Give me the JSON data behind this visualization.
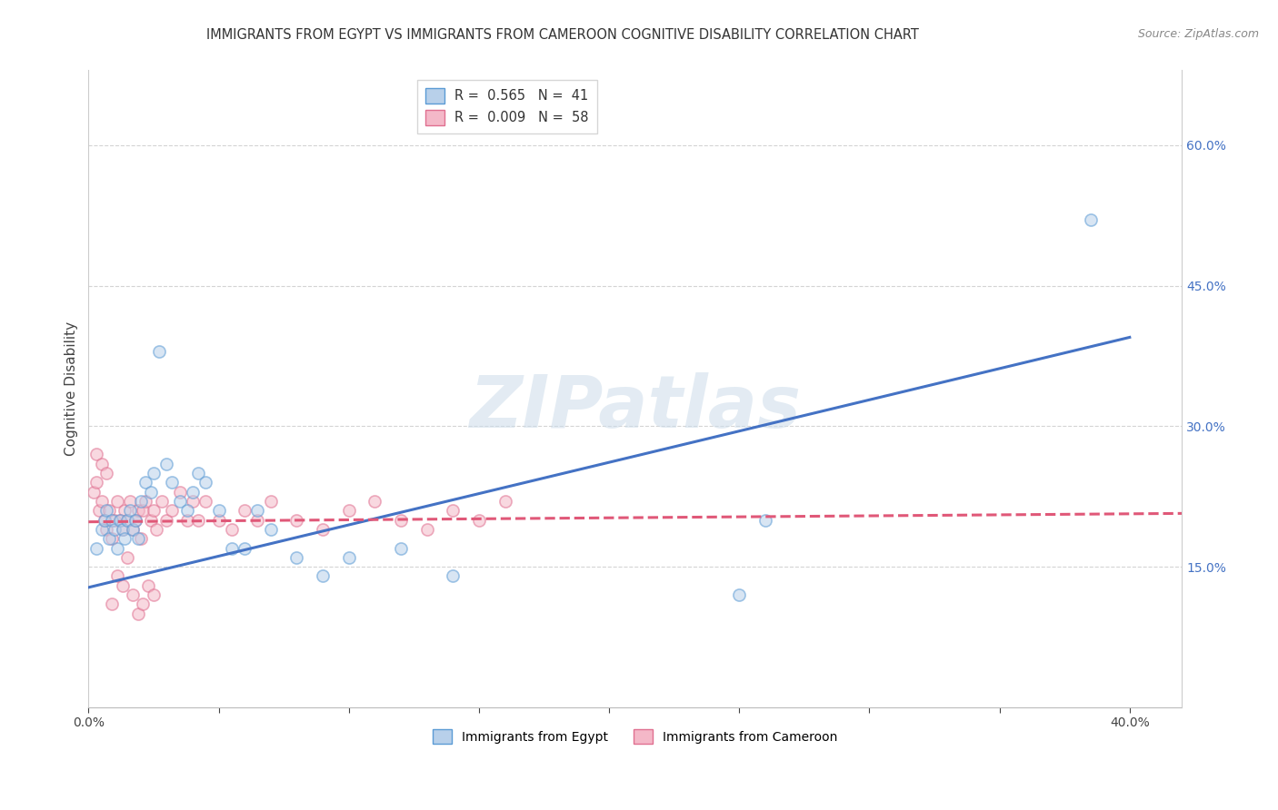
{
  "title": "IMMIGRANTS FROM EGYPT VS IMMIGRANTS FROM CAMEROON COGNITIVE DISABILITY CORRELATION CHART",
  "source": "Source: ZipAtlas.com",
  "ylabel": "Cognitive Disability",
  "xlabel_egypt": "Immigrants from Egypt",
  "xlabel_cameroon": "Immigrants from Cameroon",
  "watermark": "ZIPatlas",
  "xlim": [
    0.0,
    0.42
  ],
  "ylim": [
    0.0,
    0.68
  ],
  "xtick_positions": [
    0.0,
    0.05,
    0.1,
    0.15,
    0.2,
    0.25,
    0.3,
    0.35,
    0.4
  ],
  "xtick_labels": [
    "0.0%",
    "",
    "",
    "",
    "",
    "",
    "",
    "",
    "40.0%"
  ],
  "yticks_right": [
    0.15,
    0.3,
    0.45,
    0.6
  ],
  "ytick_labels_right": [
    "15.0%",
    "30.0%",
    "45.0%",
    "60.0%"
  ],
  "color_egypt_fill": "#b8d0ea",
  "color_egypt_edge": "#5b9bd5",
  "color_egypt_line": "#4472c4",
  "color_cameroon_fill": "#f4b8c8",
  "color_cameroon_edge": "#e07090",
  "color_cameroon_line": "#e05878",
  "grid_color": "#d0d0d0",
  "background_color": "#ffffff",
  "scatter_size": 90,
  "scatter_alpha": 0.55,
  "line_width": 2.2,
  "egypt_x": [
    0.003,
    0.005,
    0.006,
    0.007,
    0.008,
    0.009,
    0.01,
    0.011,
    0.012,
    0.013,
    0.014,
    0.015,
    0.016,
    0.017,
    0.018,
    0.019,
    0.02,
    0.022,
    0.024,
    0.025,
    0.027,
    0.03,
    0.032,
    0.035,
    0.038,
    0.04,
    0.042,
    0.045,
    0.05,
    0.055,
    0.06,
    0.065,
    0.07,
    0.08,
    0.09,
    0.1,
    0.12,
    0.14,
    0.25,
    0.385,
    0.26
  ],
  "egypt_y": [
    0.17,
    0.19,
    0.2,
    0.21,
    0.18,
    0.2,
    0.19,
    0.17,
    0.2,
    0.19,
    0.18,
    0.2,
    0.21,
    0.19,
    0.2,
    0.18,
    0.22,
    0.24,
    0.23,
    0.25,
    0.38,
    0.26,
    0.24,
    0.22,
    0.21,
    0.23,
    0.25,
    0.24,
    0.21,
    0.17,
    0.17,
    0.21,
    0.19,
    0.16,
    0.14,
    0.16,
    0.17,
    0.14,
    0.12,
    0.52,
    0.2
  ],
  "cameroon_x": [
    0.002,
    0.003,
    0.004,
    0.005,
    0.006,
    0.007,
    0.008,
    0.009,
    0.01,
    0.011,
    0.012,
    0.013,
    0.014,
    0.015,
    0.016,
    0.017,
    0.018,
    0.019,
    0.02,
    0.021,
    0.022,
    0.024,
    0.025,
    0.026,
    0.028,
    0.03,
    0.032,
    0.035,
    0.038,
    0.04,
    0.042,
    0.045,
    0.05,
    0.055,
    0.06,
    0.065,
    0.07,
    0.08,
    0.09,
    0.1,
    0.11,
    0.12,
    0.13,
    0.14,
    0.15,
    0.16,
    0.003,
    0.005,
    0.007,
    0.009,
    0.011,
    0.013,
    0.015,
    0.017,
    0.019,
    0.021,
    0.023,
    0.025
  ],
  "cameroon_y": [
    0.23,
    0.24,
    0.21,
    0.22,
    0.2,
    0.19,
    0.21,
    0.18,
    0.2,
    0.22,
    0.2,
    0.19,
    0.21,
    0.2,
    0.22,
    0.19,
    0.2,
    0.21,
    0.18,
    0.21,
    0.22,
    0.2,
    0.21,
    0.19,
    0.22,
    0.2,
    0.21,
    0.23,
    0.2,
    0.22,
    0.2,
    0.22,
    0.2,
    0.19,
    0.21,
    0.2,
    0.22,
    0.2,
    0.19,
    0.21,
    0.22,
    0.2,
    0.19,
    0.21,
    0.2,
    0.22,
    0.27,
    0.26,
    0.25,
    0.11,
    0.14,
    0.13,
    0.16,
    0.12,
    0.1,
    0.11,
    0.13,
    0.12
  ]
}
